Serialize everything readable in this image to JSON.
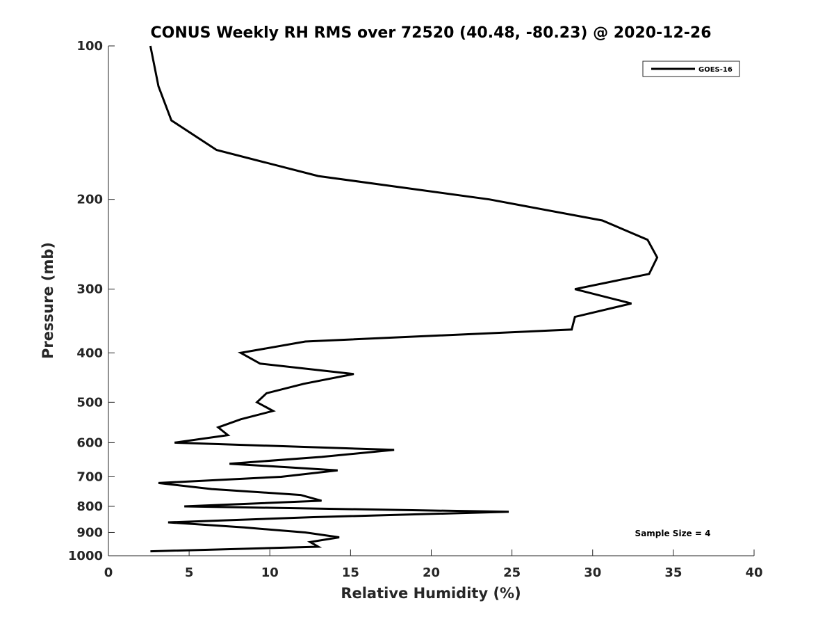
{
  "chart_data": {
    "type": "line",
    "title": "CONUS Weekly RH RMS over 72520 (40.48, -80.23) @ 2020-12-26",
    "xlabel": "Relative Humidity (%)",
    "ylabel": "Pressure (mb)",
    "xlim": [
      0,
      40
    ],
    "ylim": [
      100,
      1000
    ],
    "yscale": "log",
    "yreversed": true,
    "grid": false,
    "xticks": [
      0,
      5,
      10,
      15,
      20,
      25,
      30,
      35,
      40
    ],
    "xtick_labels": [
      "0",
      "5",
      "10",
      "15",
      "20",
      "25",
      "30",
      "35",
      "40"
    ],
    "yticks": [
      100,
      200,
      300,
      400,
      500,
      600,
      700,
      800,
      900,
      1000
    ],
    "ytick_labels": [
      "100",
      "200",
      "300",
      "400",
      "500",
      "600",
      "700",
      "800",
      "900",
      "1000"
    ],
    "legend": {
      "placement": "top-right",
      "entries": [
        "GOES-16"
      ]
    },
    "annotation": "Sample Size = 4",
    "series": [
      {
        "name": "GOES-16",
        "color": "#000000",
        "pressure": [
          100,
          120,
          140,
          160,
          180,
          200,
          220,
          240,
          260,
          280,
          300,
          320,
          340,
          360,
          380,
          400,
          420,
          440,
          460,
          480,
          500,
          520,
          540,
          560,
          580,
          600,
          620,
          640,
          660,
          680,
          700,
          720,
          740,
          760,
          780,
          800,
          820,
          840,
          860,
          880,
          900,
          920,
          940,
          960,
          980
        ],
        "rh": [
          2.6,
          3.1,
          3.9,
          6.7,
          13.0,
          23.6,
          30.6,
          33.4,
          34.0,
          33.5,
          28.9,
          32.4,
          28.9,
          28.7,
          12.2,
          8.2,
          9.4,
          15.2,
          12.1,
          9.8,
          9.2,
          10.2,
          8.2,
          6.8,
          7.4,
          4.1,
          17.7,
          13.2,
          7.5,
          14.2,
          10.7,
          3.1,
          6.4,
          11.9,
          13.2,
          4.7,
          24.8,
          12.7,
          3.7,
          8.4,
          12.2,
          14.3,
          12.5,
          13.0,
          2.6
        ]
      }
    ]
  }
}
